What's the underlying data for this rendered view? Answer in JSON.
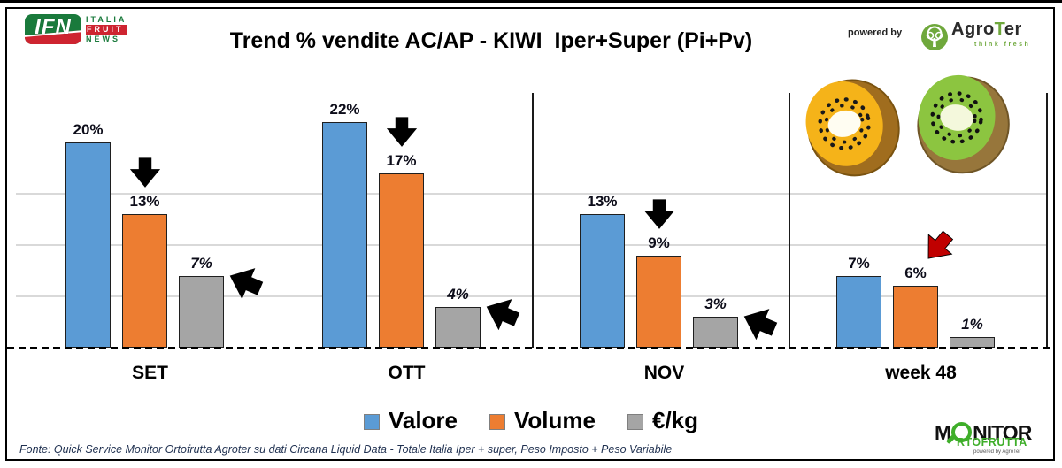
{
  "header": {
    "ifn_logo": {
      "abbr": "IFN",
      "word1": "ITALIA",
      "word2": "FRUIT",
      "word3": "NEWS"
    },
    "title": "Trend % vendite AC/AP - KIWI  Iper+Super (Pi+Pv)",
    "powered_by": "powered by",
    "agroter_logo": {
      "agro": "Agro",
      "t": "T",
      "er": "er",
      "tagline": "think fresh"
    }
  },
  "chart_data": {
    "type": "bar",
    "title": "Trend % vendite AC/AP - KIWI  Iper+Super (Pi+Pv)",
    "categories": [
      "SET",
      "OTT",
      "NOV",
      "week 48"
    ],
    "series": [
      {
        "name": "Valore",
        "color": "#5B9BD5",
        "label_style": "normal",
        "values": [
          20,
          22,
          13,
          7
        ]
      },
      {
        "name": "Volume",
        "color": "#ED7D31",
        "label_style": "normal",
        "values": [
          13,
          17,
          9,
          6
        ]
      },
      {
        "name": "€/kg",
        "color": "#A5A5A5",
        "label_style": "italic",
        "values": [
          7,
          4,
          3,
          1
        ]
      }
    ],
    "value_suffix": "%",
    "ylim": [
      0,
      24
    ],
    "grid": true,
    "gridlines_pct": [
      5,
      10,
      15
    ],
    "legend_position": "bottom",
    "annotations": [
      {
        "category": "SET",
        "series": "Volume",
        "arrow": "down",
        "color": "#000000"
      },
      {
        "category": "SET",
        "series": "€/kg",
        "arrow": "left",
        "color": "#000000"
      },
      {
        "category": "OTT",
        "series": "Volume",
        "arrow": "down",
        "color": "#000000"
      },
      {
        "category": "OTT",
        "series": "€/kg",
        "arrow": "left",
        "color": "#000000"
      },
      {
        "category": "NOV",
        "series": "Volume",
        "arrow": "down",
        "color": "#000000"
      },
      {
        "category": "NOV",
        "series": "€/kg",
        "arrow": "left",
        "color": "#000000"
      },
      {
        "category": "week 48",
        "series": "Volume",
        "arrow": "down-left",
        "color": "#C00000"
      }
    ]
  },
  "footer": {
    "source": "Fonte: Quick Service Monitor Ortofrutta Agroter su dati Circana Liquid Data - Totale Italia Iper + super, Peso Imposto + Peso Variabile",
    "monitor_logo": {
      "m": "M",
      "nitor": "NITOR",
      "rtofrutta": "RTOFRUTTA",
      "tagline": "powered by AgroTer"
    }
  }
}
